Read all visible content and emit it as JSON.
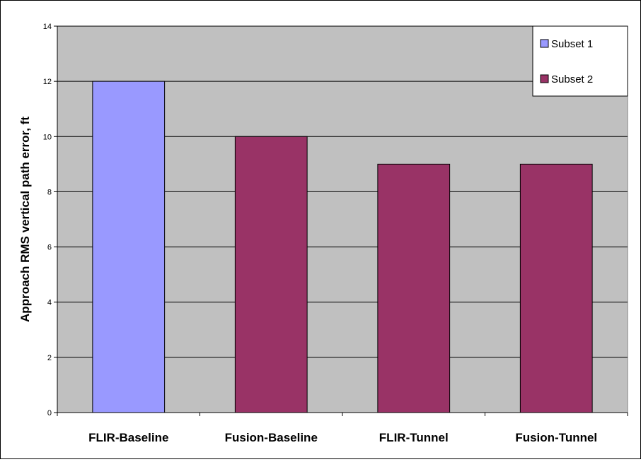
{
  "chart_data": {
    "type": "bar",
    "title": "",
    "xlabel": "",
    "ylabel": "Approach RMS vertical path error, ft",
    "categories": [
      "FLIR-Baseline",
      "Fusion-Baseline",
      "FLIR-Tunnel",
      "Fusion-Tunnel"
    ],
    "series": [
      {
        "name": "Subset 1",
        "color": "#9999FF",
        "values": [
          12,
          null,
          null,
          null
        ]
      },
      {
        "name": "Subset 2",
        "color": "#993366",
        "values": [
          null,
          10,
          9,
          9
        ]
      }
    ],
    "ylim": [
      0,
      14
    ],
    "yticks": [
      0,
      2,
      4,
      6,
      8,
      10,
      12,
      14
    ],
    "grid": true,
    "plot_background": "#C0C0C0",
    "legend_position": "top-right"
  }
}
